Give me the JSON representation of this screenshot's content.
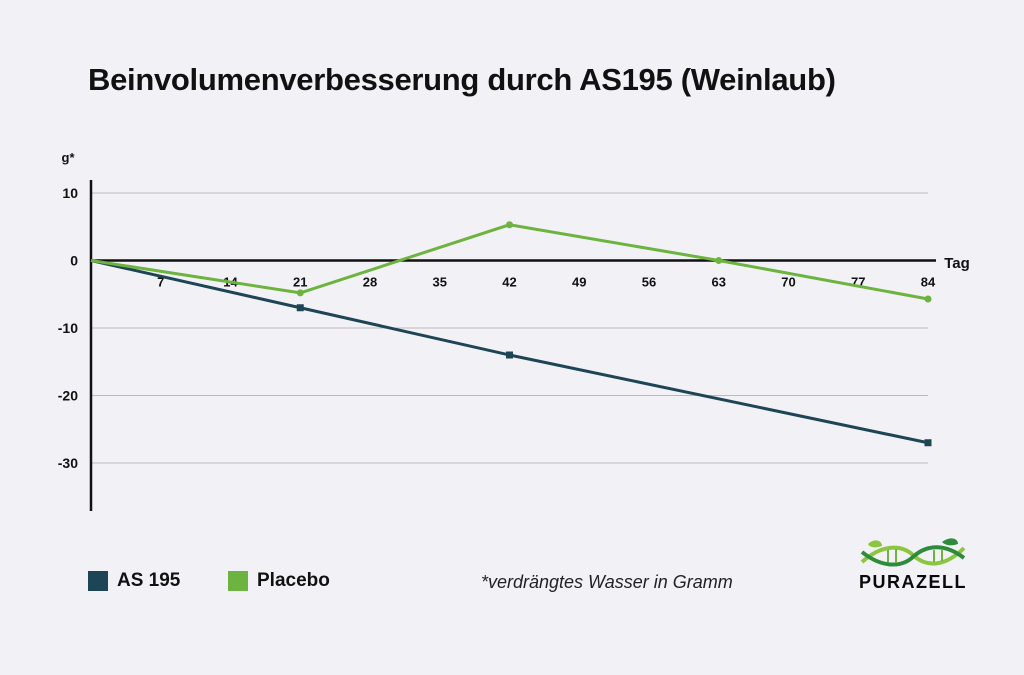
{
  "chart_data": {
    "type": "line",
    "title": "Beinvolumenverbesserung durch AS195 (Weinlaub)",
    "ylabel": "g*",
    "xlabel": "Tag",
    "ylim": [
      -37,
      10
    ],
    "yticks": [
      10,
      0,
      -10,
      -20,
      -30
    ],
    "xlim": [
      0,
      84
    ],
    "xticks": [
      7,
      14,
      21,
      28,
      35,
      42,
      49,
      56,
      63,
      70,
      77,
      84
    ],
    "grid": true,
    "series": [
      {
        "name": "AS 195",
        "color": "#1e4556",
        "marker": "square",
        "x": [
          0,
          21,
          42,
          84
        ],
        "y": [
          0,
          -7,
          -14,
          -27
        ]
      },
      {
        "name": "Placebo",
        "color": "#6db33f",
        "marker": "circle",
        "x": [
          0,
          21,
          42,
          63,
          84
        ],
        "y": [
          0,
          -4.8,
          5.3,
          0,
          -5.7
        ]
      }
    ]
  },
  "legend": {
    "items": [
      {
        "label": "AS 195",
        "color": "#1e4556"
      },
      {
        "label": "Placebo",
        "color": "#6db33f"
      }
    ]
  },
  "note": "*verdrängtes Wasser in Gramm",
  "logo": {
    "text": "PURAZELL",
    "colors": {
      "leaf_light": "#8cc63f",
      "leaf_dark": "#2e8b3a"
    }
  }
}
